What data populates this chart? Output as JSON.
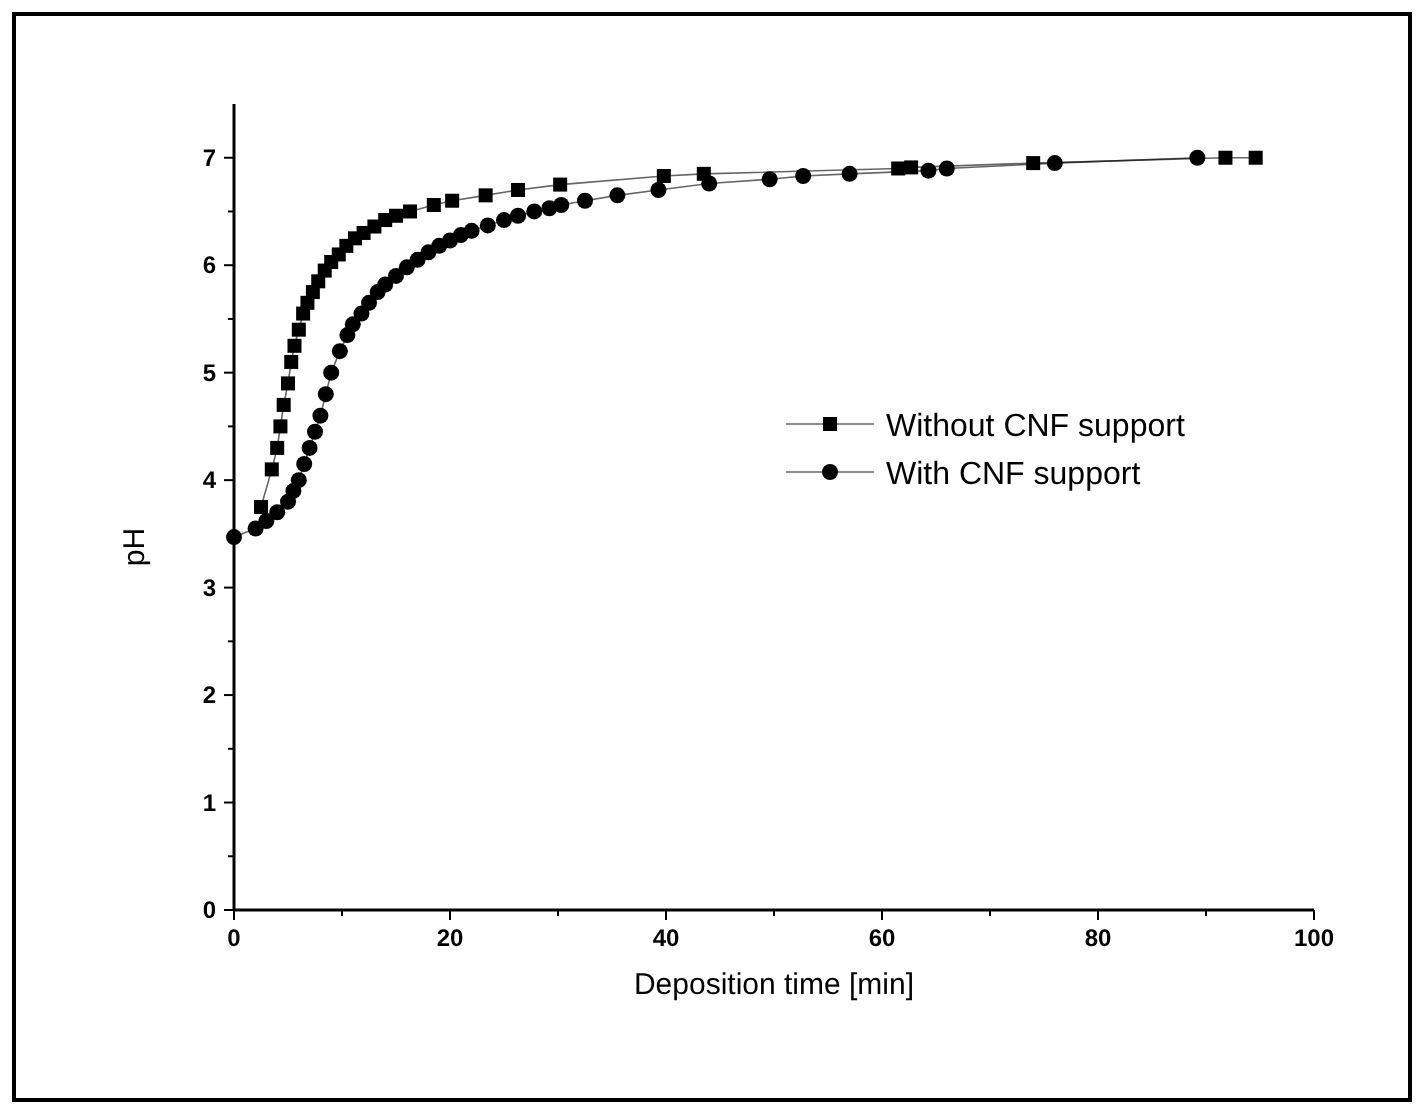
{
  "chart_data": {
    "type": "line",
    "xlabel": "Deposition time [min]",
    "ylabel": "pH",
    "xlim": [
      0,
      100
    ],
    "ylim": [
      0,
      7.5
    ],
    "xticks": [
      0,
      {
        "value": 10,
        "label": null
      },
      20,
      {
        "value": 30,
        "label": null
      },
      40,
      {
        "value": 50,
        "label": null
      },
      60,
      {
        "value": 70,
        "label": null
      },
      80,
      {
        "value": 90,
        "label": null
      },
      100
    ],
    "yticks": [
      0,
      {
        "value": 0.5,
        "label": null
      },
      1,
      {
        "value": 1.5,
        "label": null
      },
      2,
      {
        "value": 2.5,
        "label": null
      },
      3,
      {
        "value": 3.5,
        "label": null
      },
      4,
      {
        "value": 4.5,
        "label": null
      },
      5,
      {
        "value": 5.5,
        "label": null
      },
      6,
      {
        "value": 6.5,
        "label": null
      },
      7
    ],
    "grid": false,
    "legend": "right",
    "line_style": "solid",
    "series": [
      {
        "name": "Without CNF support",
        "color": "#000000",
        "marker": "square",
        "x": [
          2.5,
          3.5,
          4,
          4.3,
          4.6,
          5,
          5.3,
          5.6,
          6,
          6.4,
          6.8,
          7.3,
          7.8,
          8.4,
          9,
          9.7,
          10.4,
          11.2,
          12,
          13,
          14,
          15,
          16.3,
          18.5,
          20.2,
          23.3,
          26.3,
          30.2,
          39.8,
          43.5,
          61.5,
          62.7,
          74,
          91.8,
          94.6
        ],
        "values": [
          3.75,
          4.1,
          4.3,
          4.5,
          4.7,
          4.9,
          5.1,
          5.25,
          5.4,
          5.55,
          5.65,
          5.75,
          5.85,
          5.95,
          6.03,
          6.1,
          6.18,
          6.25,
          6.3,
          6.36,
          6.42,
          6.46,
          6.5,
          6.56,
          6.6,
          6.65,
          6.7,
          6.75,
          6.83,
          6.85,
          6.9,
          6.91,
          6.95,
          7,
          7
        ]
      },
      {
        "name": "With CNF support",
        "color": "#000000",
        "marker": "circle",
        "x": [
          0,
          2,
          3,
          4,
          5,
          5.5,
          6,
          6.5,
          7,
          7.5,
          8,
          8.5,
          9,
          9.8,
          10.5,
          11,
          11.8,
          12.5,
          13.3,
          14,
          15,
          16,
          17,
          18,
          19,
          20,
          21,
          22,
          23.5,
          25,
          26.3,
          27.8,
          29.2,
          30.3,
          32.5,
          35.5,
          39.3,
          44,
          49.6,
          52.7,
          57,
          64.3,
          66,
          76,
          89.2
        ],
        "values": [
          3.47,
          3.55,
          3.62,
          3.7,
          3.8,
          3.9,
          4,
          4.15,
          4.3,
          4.45,
          4.6,
          4.8,
          5,
          5.2,
          5.35,
          5.45,
          5.55,
          5.65,
          5.75,
          5.82,
          5.9,
          5.98,
          6.05,
          6.12,
          6.18,
          6.23,
          6.28,
          6.32,
          6.37,
          6.42,
          6.46,
          6.5,
          6.53,
          6.56,
          6.6,
          6.65,
          6.7,
          6.76,
          6.8,
          6.83,
          6.85,
          6.88,
          6.9,
          6.95,
          7
        ]
      }
    ]
  }
}
